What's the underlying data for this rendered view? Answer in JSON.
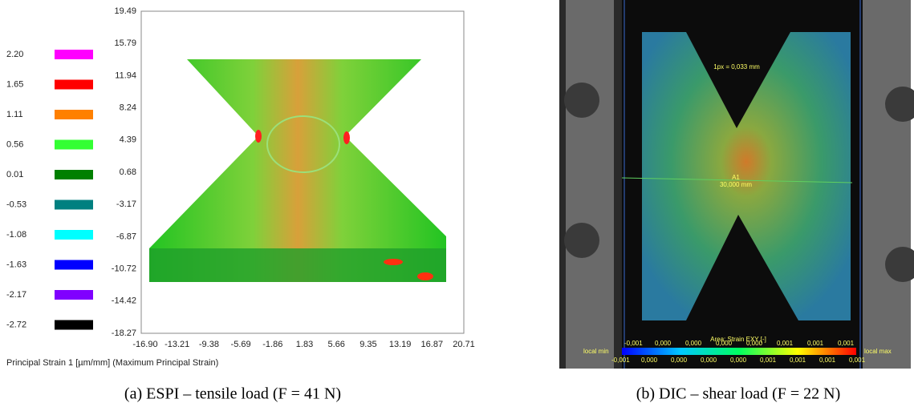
{
  "figure": {
    "panel_a": {
      "legend": [
        {
          "label": "2.20",
          "color": "#ff00ff"
        },
        {
          "label": "1.65",
          "color": "#ff0000"
        },
        {
          "label": "1.11",
          "color": "#ff8000"
        },
        {
          "label": "0.56",
          "color": "#33ff33"
        },
        {
          "label": "0.01",
          "color": "#008000"
        },
        {
          "label": "-0.53",
          "color": "#008080"
        },
        {
          "label": "-1.08",
          "color": "#00ffff"
        },
        {
          "label": "-1.63",
          "color": "#0000ff"
        },
        {
          "label": "-2.17",
          "color": "#8000ff"
        },
        {
          "label": "-2.72",
          "color": "#000000"
        }
      ],
      "yticks": [
        "19.49",
        "15.79",
        "11.94",
        "8.24",
        "4.39",
        "0.68",
        "-3.17",
        "-6.87",
        "-10.72",
        "-14.42",
        "-18.27"
      ],
      "xticks": [
        "-16.90",
        "-13.21",
        "-9.38",
        "-5.69",
        "-1.86",
        "1.83",
        "5.66",
        "9.35",
        "13.19",
        "16.87",
        "20.71"
      ],
      "axis_label": "Principal Strain 1 [µm/mm] (Maximum Principal Strain)",
      "caption": "(a) ESPI – tensile load (F = 41 N)"
    },
    "panel_b": {
      "scale_note": "1px = 0,033 mm",
      "area_name": "A1",
      "length": "30,000 mm",
      "colorbar_title": "Area: Strain EXY [-]",
      "colorbar_top": [
        "-0,001",
        "0,000",
        "0,000",
        "0,000",
        "0,000",
        "0,001",
        "0,001",
        "0,001"
      ],
      "colorbar_bottom": [
        "-0,001",
        "0,000",
        "0,000",
        "0,000",
        "0,000",
        "0,001",
        "0,001",
        "0,001",
        "0,001"
      ],
      "local_min": "local min",
      "local_max": "local max",
      "caption": "(b) DIC – shear load (F = 22 N)"
    }
  }
}
